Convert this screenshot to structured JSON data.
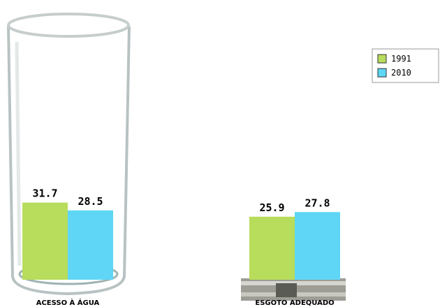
{
  "chart_data": {
    "type": "bar",
    "categories": [
      "ACESSO À ÁGUA",
      "ESGOTO ADEQUADO"
    ],
    "series": [
      {
        "name": "1991",
        "color": "#b8dc5c",
        "values": [
          31.7,
          25.9
        ]
      },
      {
        "name": "2010",
        "color": "#5fd6f5",
        "values": [
          28.5,
          27.8
        ]
      }
    ]
  }
}
